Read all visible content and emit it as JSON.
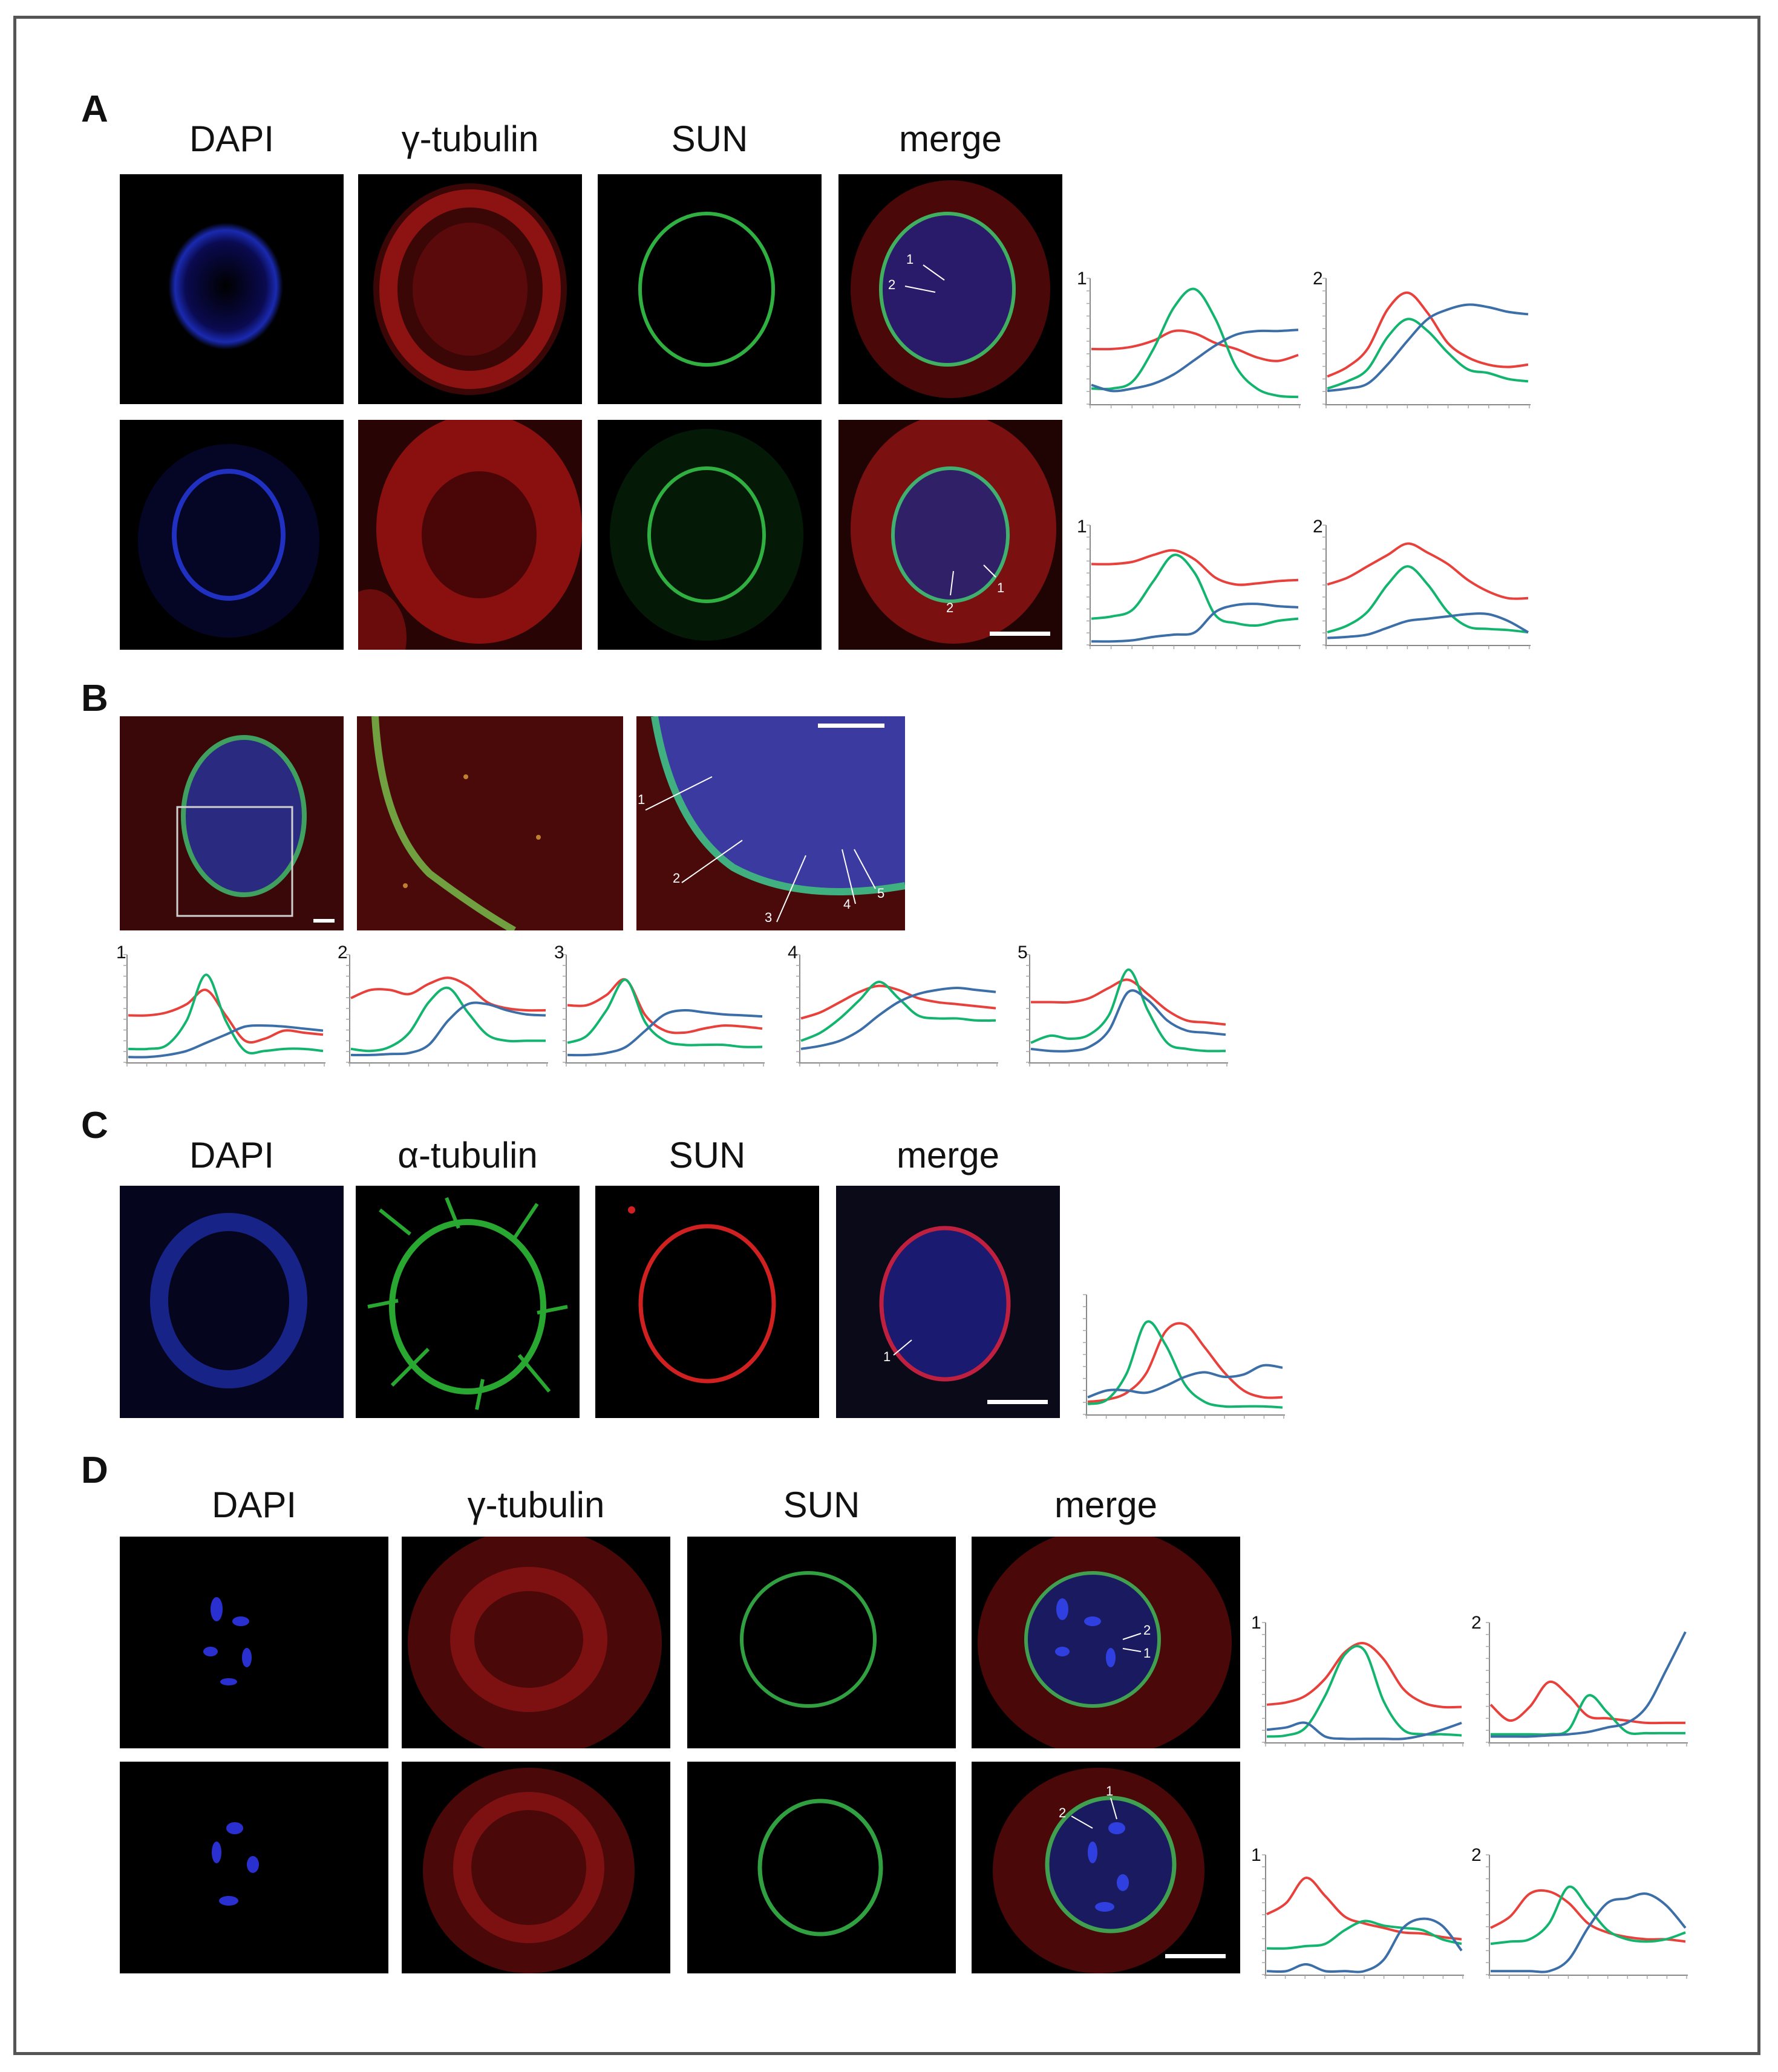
{
  "panels": {
    "A": {
      "letter": "A",
      "columns": [
        "DAPI",
        "γ-tubulin",
        "SUN",
        "merge"
      ]
    },
    "B": {
      "letter": "B",
      "line_labels": [
        "1",
        "2",
        "3",
        "4",
        "5"
      ]
    },
    "C": {
      "letter": "C",
      "columns": [
        "DAPI",
        "α-tubulin",
        "SUN",
        "merge"
      ]
    },
    "D": {
      "letter": "D",
      "columns": [
        "DAPI",
        "γ-tubulin",
        "SUN",
        "merge"
      ]
    }
  },
  "profile_labels": {
    "A_row1": [
      "1",
      "2"
    ],
    "A_row2": [
      "1",
      "2"
    ],
    "B": [
      "1",
      "2",
      "3",
      "4",
      "5"
    ],
    "C": [],
    "D_row1": [
      "1",
      "2"
    ],
    "D_row2": [
      "1",
      "2"
    ]
  },
  "line_colors": {
    "red": "#e8413c",
    "green": "#12b46e",
    "blue": "#3c6ea8"
  },
  "chart_data": [
    {
      "id": "A-r1-1",
      "type": "line",
      "title": "1",
      "x": [
        0,
        1,
        2,
        3,
        4,
        5,
        6,
        7,
        8,
        9,
        10
      ],
      "series": [
        {
          "color": "red",
          "values": [
            0.45,
            0.45,
            0.47,
            0.52,
            0.6,
            0.58,
            0.5,
            0.45,
            0.38,
            0.35,
            0.4
          ]
        },
        {
          "color": "green",
          "values": [
            0.12,
            0.12,
            0.18,
            0.45,
            0.8,
            0.95,
            0.7,
            0.3,
            0.12,
            0.06,
            0.05
          ]
        },
        {
          "color": "blue",
          "values": [
            0.15,
            0.1,
            0.12,
            0.16,
            0.24,
            0.36,
            0.48,
            0.57,
            0.6,
            0.6,
            0.61
          ]
        }
      ]
    },
    {
      "id": "A-r1-2",
      "type": "line",
      "title": "2",
      "x": [
        0,
        1,
        2,
        3,
        4,
        5,
        6,
        7,
        8,
        9,
        10
      ],
      "series": [
        {
          "color": "red",
          "values": [
            0.22,
            0.3,
            0.45,
            0.78,
            0.92,
            0.75,
            0.5,
            0.38,
            0.32,
            0.3,
            0.32
          ]
        },
        {
          "color": "green",
          "values": [
            0.12,
            0.18,
            0.28,
            0.55,
            0.7,
            0.6,
            0.42,
            0.28,
            0.25,
            0.2,
            0.18
          ]
        },
        {
          "color": "blue",
          "values": [
            0.1,
            0.12,
            0.16,
            0.32,
            0.52,
            0.7,
            0.78,
            0.82,
            0.8,
            0.76,
            0.74
          ]
        }
      ]
    },
    {
      "id": "A-r2-1",
      "type": "line",
      "title": "1",
      "x": [
        0,
        1,
        2,
        3,
        4,
        5,
        6,
        7,
        8,
        9,
        10
      ],
      "series": [
        {
          "color": "red",
          "values": [
            0.7,
            0.7,
            0.72,
            0.78,
            0.82,
            0.74,
            0.58,
            0.52,
            0.53,
            0.55,
            0.56
          ]
        },
        {
          "color": "green",
          "values": [
            0.22,
            0.24,
            0.3,
            0.55,
            0.78,
            0.62,
            0.25,
            0.18,
            0.16,
            0.2,
            0.22
          ]
        },
        {
          "color": "blue",
          "values": [
            0.02,
            0.02,
            0.03,
            0.06,
            0.08,
            0.1,
            0.28,
            0.34,
            0.35,
            0.33,
            0.32
          ]
        }
      ]
    },
    {
      "id": "A-r2-2",
      "type": "line",
      "title": "2",
      "x": [
        0,
        1,
        2,
        3,
        4,
        5,
        6,
        7,
        8,
        9,
        10
      ],
      "series": [
        {
          "color": "red",
          "values": [
            0.52,
            0.58,
            0.68,
            0.78,
            0.88,
            0.8,
            0.7,
            0.56,
            0.46,
            0.4,
            0.4
          ]
        },
        {
          "color": "green",
          "values": [
            0.1,
            0.16,
            0.28,
            0.52,
            0.68,
            0.52,
            0.28,
            0.15,
            0.13,
            0.12,
            0.1
          ]
        },
        {
          "color": "blue",
          "values": [
            0.05,
            0.06,
            0.08,
            0.14,
            0.2,
            0.22,
            0.24,
            0.26,
            0.26,
            0.2,
            0.1
          ]
        }
      ]
    },
    {
      "id": "B-1",
      "type": "line",
      "title": "1",
      "x": [
        0,
        1,
        2,
        3,
        4,
        5,
        6,
        7,
        8,
        9,
        10
      ],
      "series": [
        {
          "color": "red",
          "values": [
            0.45,
            0.45,
            0.48,
            0.56,
            0.7,
            0.45,
            0.2,
            0.22,
            0.3,
            0.28,
            0.26
          ]
        },
        {
          "color": "green",
          "values": [
            0.12,
            0.12,
            0.16,
            0.4,
            0.85,
            0.4,
            0.1,
            0.1,
            0.12,
            0.12,
            0.1
          ]
        },
        {
          "color": "blue",
          "values": [
            0.04,
            0.04,
            0.06,
            0.1,
            0.18,
            0.26,
            0.34,
            0.35,
            0.34,
            0.32,
            0.3
          ]
        }
      ]
    },
    {
      "id": "B-2",
      "type": "line",
      "title": "2",
      "x": [
        0,
        1,
        2,
        3,
        4,
        5,
        6,
        7,
        8,
        9,
        10
      ],
      "series": [
        {
          "color": "red",
          "values": [
            0.62,
            0.7,
            0.7,
            0.66,
            0.76,
            0.82,
            0.74,
            0.58,
            0.52,
            0.5,
            0.5
          ]
        },
        {
          "color": "green",
          "values": [
            0.12,
            0.1,
            0.14,
            0.28,
            0.58,
            0.72,
            0.48,
            0.26,
            0.2,
            0.2,
            0.2
          ]
        },
        {
          "color": "blue",
          "values": [
            0.06,
            0.06,
            0.07,
            0.08,
            0.16,
            0.4,
            0.56,
            0.56,
            0.5,
            0.46,
            0.45
          ]
        }
      ]
    },
    {
      "id": "B-3",
      "type": "line",
      "title": "3",
      "x": [
        0,
        1,
        2,
        3,
        4,
        5,
        6,
        7,
        8,
        9,
        10
      ],
      "series": [
        {
          "color": "red",
          "values": [
            0.55,
            0.55,
            0.65,
            0.8,
            0.45,
            0.3,
            0.28,
            0.32,
            0.35,
            0.34,
            0.32
          ]
        },
        {
          "color": "green",
          "values": [
            0.18,
            0.25,
            0.5,
            0.8,
            0.38,
            0.2,
            0.16,
            0.16,
            0.16,
            0.14,
            0.14
          ]
        },
        {
          "color": "blue",
          "values": [
            0.06,
            0.06,
            0.08,
            0.14,
            0.3,
            0.46,
            0.5,
            0.48,
            0.46,
            0.45,
            0.44
          ]
        }
      ]
    },
    {
      "id": "B-4",
      "type": "line",
      "title": "4",
      "x": [
        0,
        1,
        2,
        3,
        4,
        5,
        6,
        7,
        8,
        9,
        10
      ],
      "series": [
        {
          "color": "red",
          "values": [
            0.42,
            0.48,
            0.58,
            0.68,
            0.74,
            0.7,
            0.62,
            0.58,
            0.56,
            0.54,
            0.52
          ]
        },
        {
          "color": "green",
          "values": [
            0.2,
            0.28,
            0.42,
            0.6,
            0.78,
            0.62,
            0.45,
            0.42,
            0.42,
            0.4,
            0.4
          ]
        },
        {
          "color": "blue",
          "values": [
            0.12,
            0.15,
            0.2,
            0.3,
            0.45,
            0.58,
            0.66,
            0.7,
            0.72,
            0.7,
            0.68
          ]
        }
      ]
    },
    {
      "id": "B-5",
      "type": "line",
      "title": "5",
      "x": [
        0,
        1,
        2,
        3,
        4,
        5,
        6,
        7,
        8,
        9,
        10
      ],
      "series": [
        {
          "color": "red",
          "values": [
            0.58,
            0.58,
            0.58,
            0.62,
            0.72,
            0.8,
            0.66,
            0.5,
            0.4,
            0.38,
            0.36
          ]
        },
        {
          "color": "green",
          "values": [
            0.18,
            0.25,
            0.22,
            0.26,
            0.45,
            0.9,
            0.5,
            0.18,
            0.12,
            0.1,
            0.1
          ]
        },
        {
          "color": "blue",
          "values": [
            0.12,
            0.1,
            0.1,
            0.14,
            0.3,
            0.68,
            0.6,
            0.4,
            0.3,
            0.28,
            0.26
          ]
        }
      ]
    },
    {
      "id": "C-1",
      "type": "line",
      "title": "",
      "x": [
        0,
        1,
        2,
        3,
        4,
        5,
        6,
        7,
        8,
        9,
        10
      ],
      "series": [
        {
          "color": "red",
          "values": [
            0.1,
            0.12,
            0.18,
            0.35,
            0.72,
            0.78,
            0.58,
            0.36,
            0.2,
            0.14,
            0.14
          ]
        },
        {
          "color": "green",
          "values": [
            0.08,
            0.12,
            0.35,
            0.8,
            0.6,
            0.25,
            0.1,
            0.06,
            0.06,
            0.06,
            0.05
          ]
        },
        {
          "color": "blue",
          "values": [
            0.14,
            0.2,
            0.2,
            0.18,
            0.24,
            0.32,
            0.36,
            0.32,
            0.34,
            0.42,
            0.4
          ]
        }
      ]
    },
    {
      "id": "D-r1-1",
      "type": "line",
      "title": "1",
      "x": [
        0,
        1,
        2,
        3,
        4,
        5,
        6,
        7,
        8,
        9,
        10
      ],
      "series": [
        {
          "color": "red",
          "values": [
            0.32,
            0.34,
            0.4,
            0.55,
            0.78,
            0.86,
            0.72,
            0.46,
            0.34,
            0.3,
            0.3
          ]
        },
        {
          "color": "green",
          "values": [
            0.04,
            0.05,
            0.12,
            0.4,
            0.76,
            0.8,
            0.35,
            0.1,
            0.06,
            0.06,
            0.05
          ]
        },
        {
          "color": "blue",
          "values": [
            0.1,
            0.12,
            0.16,
            0.04,
            0.02,
            0.02,
            0.02,
            0.02,
            0.05,
            0.1,
            0.16
          ]
        }
      ]
    },
    {
      "id": "D-r1-2",
      "type": "line",
      "title": "2",
      "x": [
        0,
        1,
        2,
        3,
        4,
        5,
        6,
        7,
        8,
        9,
        10
      ],
      "series": [
        {
          "color": "red",
          "values": [
            0.32,
            0.18,
            0.3,
            0.52,
            0.4,
            0.22,
            0.2,
            0.18,
            0.16,
            0.16,
            0.16
          ]
        },
        {
          "color": "green",
          "values": [
            0.06,
            0.06,
            0.06,
            0.06,
            0.1,
            0.4,
            0.25,
            0.08,
            0.07,
            0.07,
            0.07
          ]
        },
        {
          "color": "blue",
          "values": [
            0.04,
            0.04,
            0.04,
            0.05,
            0.06,
            0.08,
            0.12,
            0.16,
            0.3,
            0.62,
            0.96
          ]
        }
      ]
    },
    {
      "id": "D-r2-1",
      "type": "line",
      "title": "1",
      "x": [
        0,
        1,
        2,
        3,
        4,
        5,
        6,
        7,
        8,
        9,
        10
      ],
      "series": [
        {
          "color": "red",
          "values": [
            0.52,
            0.62,
            0.84,
            0.68,
            0.5,
            0.44,
            0.4,
            0.36,
            0.35,
            0.32,
            0.3
          ]
        },
        {
          "color": "green",
          "values": [
            0.22,
            0.22,
            0.24,
            0.26,
            0.38,
            0.46,
            0.42,
            0.4,
            0.38,
            0.3,
            0.26
          ]
        },
        {
          "color": "blue",
          "values": [
            0.02,
            0.02,
            0.08,
            0.02,
            0.02,
            0.02,
            0.12,
            0.4,
            0.48,
            0.42,
            0.2
          ]
        }
      ]
    },
    {
      "id": "D-r2-2",
      "type": "line",
      "title": "2",
      "x": [
        0,
        1,
        2,
        3,
        4,
        5,
        6,
        7,
        8,
        9,
        10
      ],
      "series": [
        {
          "color": "red",
          "values": [
            0.4,
            0.5,
            0.7,
            0.72,
            0.62,
            0.44,
            0.36,
            0.32,
            0.3,
            0.3,
            0.28
          ]
        },
        {
          "color": "green",
          "values": [
            0.26,
            0.28,
            0.3,
            0.44,
            0.76,
            0.58,
            0.38,
            0.3,
            0.28,
            0.3,
            0.36
          ]
        },
        {
          "color": "blue",
          "values": [
            0.02,
            0.02,
            0.02,
            0.02,
            0.12,
            0.4,
            0.62,
            0.66,
            0.7,
            0.6,
            0.4
          ]
        }
      ]
    }
  ]
}
